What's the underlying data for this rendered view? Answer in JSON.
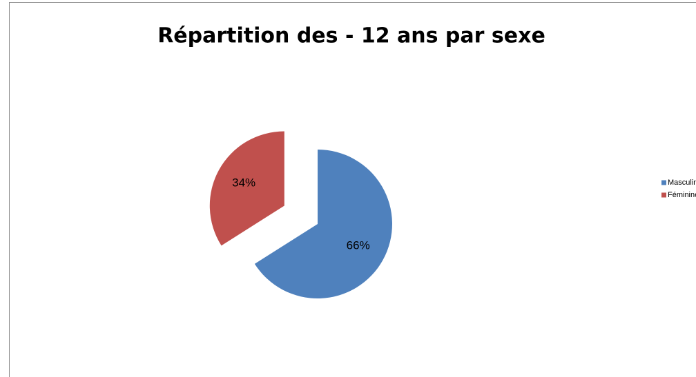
{
  "chart_data": {
    "type": "pie",
    "title": "Répartition des - 12 ans par sexe",
    "categories": [
      "Masculin",
      "Féminine"
    ],
    "values": [
      66,
      34
    ],
    "value_labels": [
      "66%",
      "34%"
    ],
    "colors": [
      "#4f81bd",
      "#c0504d"
    ],
    "exploded": [
      false,
      true
    ],
    "legend": "right"
  }
}
